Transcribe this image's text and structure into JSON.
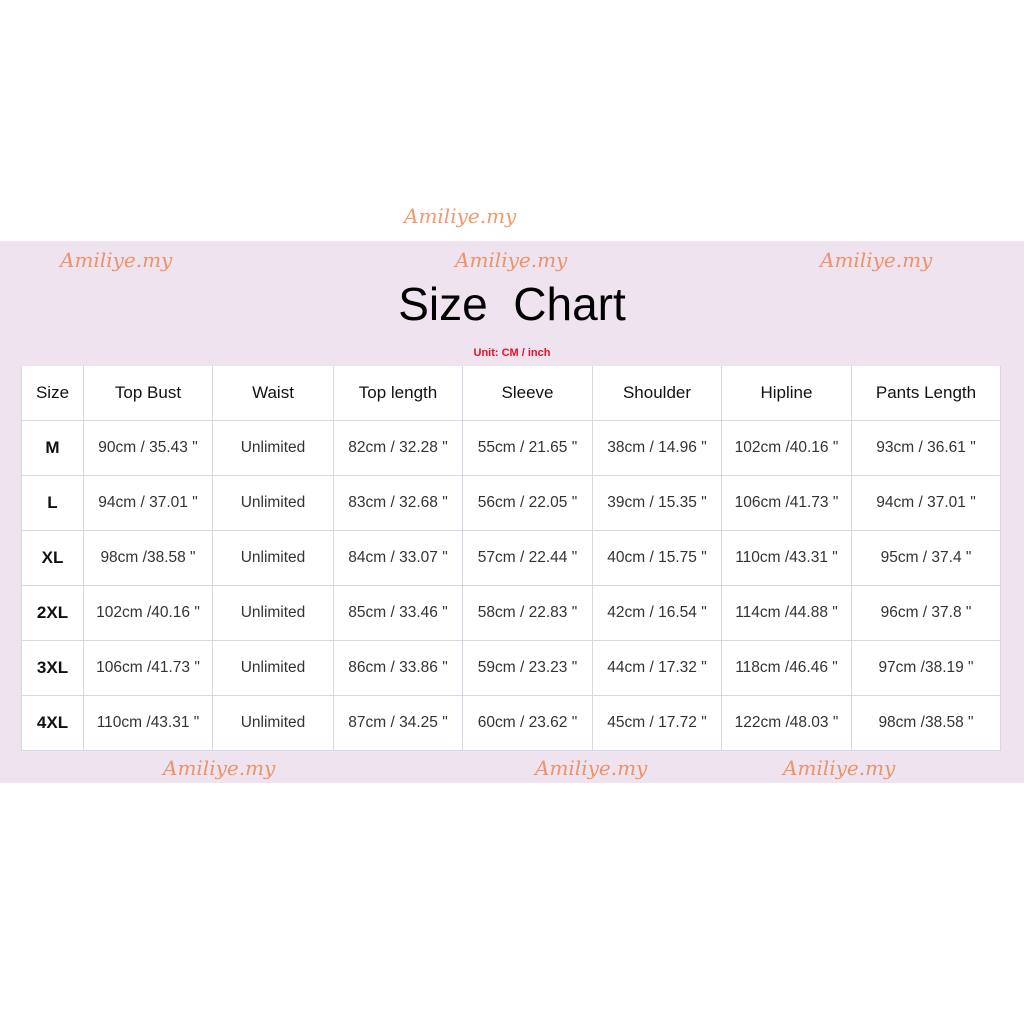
{
  "title": "Size  Chart",
  "unit_label": "Unit: CM / inch",
  "watermark": "Amiliye.my",
  "colors": {
    "background_band": "#efe3ef",
    "unit_text": "#e8102a",
    "watermark": "#eb783c"
  },
  "table": {
    "headers": [
      "Size",
      "Top Bust",
      "Waist",
      "Top length",
      "Sleeve",
      "Shoulder",
      "Hipline",
      "Pants Length"
    ],
    "rows": [
      [
        "M",
        "90cm / 35.43 \"",
        "Unlimited",
        "82cm / 32.28 \"",
        "55cm / 21.65 \"",
        "38cm / 14.96 \"",
        "102cm /40.16 \"",
        "93cm / 36.61 \""
      ],
      [
        "L",
        "94cm / 37.01 \"",
        "Unlimited",
        "83cm / 32.68 \"",
        "56cm / 22.05 \"",
        "39cm / 15.35 \"",
        "106cm /41.73 \"",
        "94cm / 37.01 \""
      ],
      [
        "XL",
        "98cm /38.58 \"",
        "Unlimited",
        "84cm / 33.07 \"",
        "57cm / 22.44 \"",
        "40cm / 15.75 \"",
        "110cm /43.31 \"",
        "95cm / 37.4 \""
      ],
      [
        "2XL",
        "102cm /40.16 \"",
        "Unlimited",
        "85cm / 33.46 \"",
        "58cm / 22.83 \"",
        "42cm / 16.54 \"",
        "114cm /44.88 \"",
        "96cm / 37.8 \""
      ],
      [
        "3XL",
        "106cm /41.73 \"",
        "Unlimited",
        "86cm / 33.86 \"",
        "59cm / 23.23 \"",
        "44cm / 17.32 \"",
        "118cm /46.46 \"",
        "97cm /38.19 \""
      ],
      [
        "4XL",
        "110cm /43.31 \"",
        "Unlimited",
        "87cm / 34.25 \"",
        "60cm / 23.62 \"",
        "45cm / 17.72 \"",
        "122cm /48.03 \"",
        "98cm /38.58 \""
      ]
    ]
  }
}
